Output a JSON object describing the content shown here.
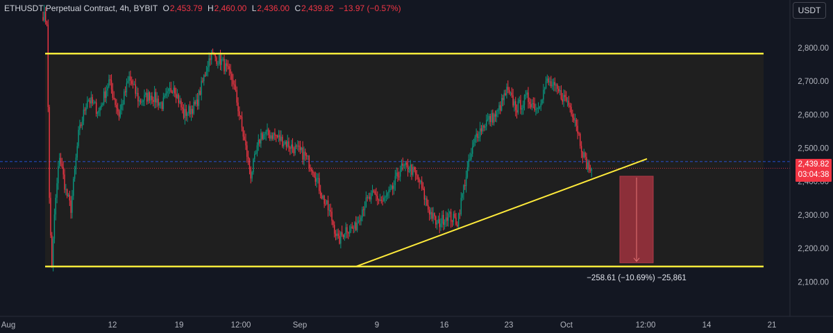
{
  "header": {
    "symbol": "ETHUSDT Perpetual Contract, 4h, BYBIT",
    "open_label": "O",
    "open": "2,453.79",
    "high_label": "H",
    "high": "2,460.00",
    "low_label": "L",
    "low": "2,436.00",
    "close_label": "C",
    "close": "2,439.82",
    "change": "−13.97 (−0.57%)"
  },
  "currency_button": "USDT",
  "price_tag": {
    "price": "2,439.82",
    "countdown": "03:04:38"
  },
  "colors": {
    "background": "#131722",
    "box_fill": "#1f1f1f",
    "up": "#089981",
    "down": "#f23645",
    "yellow": "#ffeb3b",
    "measure_fill": "#8c2f39",
    "grid_text": "#b2b5be",
    "dashed": "#2962ff"
  },
  "chart_data": {
    "type": "candlestick",
    "ylim": [
      2030,
      2910
    ],
    "y_ticks": [
      2100,
      2200,
      2300,
      2400,
      2500,
      2600,
      2700,
      2800
    ],
    "y_tick_labels": [
      "2,100.00",
      "2,200.00",
      "2,300.00",
      "2,400.00",
      "2,500.00",
      "2,600.00",
      "2,700.00",
      "2,800.00"
    ],
    "x_tick_labels": [
      "Aug",
      "12",
      "19",
      "12:00",
      "Sep",
      "9",
      "16",
      "23",
      "Oct",
      "12:00",
      "14",
      "21"
    ],
    "last_price": 2439.82,
    "dashed_level": 2460,
    "range_top": 2783,
    "range_bottom": 2146,
    "trendline": {
      "start": 2146,
      "end": 2468
    },
    "measure": {
      "from": 2416,
      "to": 2157,
      "label": "−258.61 (−10.69%) −25,861"
    },
    "waypoints": [
      [
        0,
        2900
      ],
      [
        3,
        2880
      ],
      [
        5,
        2350
      ],
      [
        7,
        2140
      ],
      [
        9,
        2300
      ],
      [
        13,
        2480
      ],
      [
        18,
        2370
      ],
      [
        22,
        2320
      ],
      [
        28,
        2540
      ],
      [
        35,
        2650
      ],
      [
        44,
        2610
      ],
      [
        52,
        2700
      ],
      [
        60,
        2600
      ],
      [
        68,
        2710
      ],
      [
        76,
        2640
      ],
      [
        85,
        2660
      ],
      [
        94,
        2630
      ],
      [
        103,
        2690
      ],
      [
        111,
        2600
      ],
      [
        121,
        2630
      ],
      [
        132,
        2780
      ],
      [
        141,
        2760
      ],
      [
        150,
        2700
      ],
      [
        158,
        2540
      ],
      [
        164,
        2420
      ],
      [
        172,
        2540
      ],
      [
        182,
        2540
      ],
      [
        190,
        2520
      ],
      [
        198,
        2500
      ],
      [
        206,
        2480
      ],
      [
        213,
        2440
      ],
      [
        220,
        2360
      ],
      [
        227,
        2300
      ],
      [
        233,
        2220
      ],
      [
        239,
        2260
      ],
      [
        246,
        2260
      ],
      [
        253,
        2330
      ],
      [
        261,
        2360
      ],
      [
        268,
        2340
      ],
      [
        275,
        2370
      ],
      [
        282,
        2440
      ],
      [
        290,
        2440
      ],
      [
        297,
        2400
      ],
      [
        304,
        2320
      ],
      [
        311,
        2270
      ],
      [
        319,
        2300
      ],
      [
        327,
        2280
      ],
      [
        334,
        2420
      ],
      [
        342,
        2540
      ],
      [
        350,
        2580
      ],
      [
        358,
        2600
      ],
      [
        366,
        2670
      ],
      [
        374,
        2620
      ],
      [
        382,
        2650
      ],
      [
        390,
        2620
      ],
      [
        398,
        2700
      ],
      [
        406,
        2670
      ],
      [
        414,
        2640
      ],
      [
        420,
        2590
      ],
      [
        424,
        2520
      ],
      [
        428,
        2460
      ],
      [
        433,
        2430
      ]
    ]
  }
}
